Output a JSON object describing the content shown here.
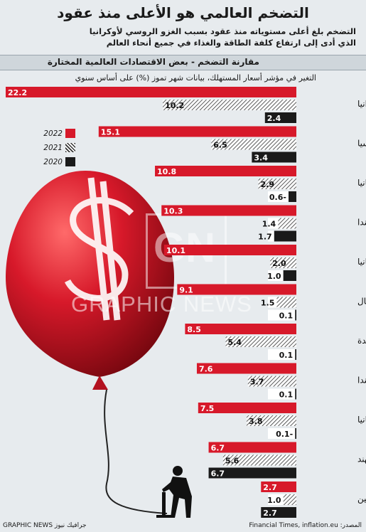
{
  "header": {
    "title": "التضخم العالمي هو الأعلى منذ عقود",
    "subtitle_line1": "التضخم بلغ أعلى مستوياته منذ عقود بسبب الغزو الروسي لأوكرانيا",
    "subtitle_line2": "الذي أدى إلى ارتفاع كلفة الطاقة والغذاء في جميع أنحاء العالم"
  },
  "section_title": "مقارنة التضخم - بعض الاقتصادات العالمية المختارة",
  "axis_note": "التغير في مؤشر أسعار المستهلك، بيانات شهر تموز (%) على أساس سنوي",
  "footer": {
    "credit": "GRAPHIC NEWS جرافيك نيوز",
    "source": "المصدر: Financial Times, inflation.eu"
  },
  "watermark": {
    "text": "GRAPHIC NEWS",
    "logo": "GN"
  },
  "colors": {
    "2022": "#d7192a",
    "2021": "hatched",
    "2020": "#1a1a1a",
    "background": "#e7ebee",
    "balloon": "#d7192a"
  },
  "icons": [
    "balloon",
    "dollar-sign",
    "man-with-pump"
  ],
  "chart_data": {
    "type": "bar",
    "categories": [
      "أوكرانيا",
      "روسيا",
      "إسبانيا",
      "هولندا",
      "بريطانيا",
      "البرتغال",
      "الولايات المتحدة",
      "كندا",
      "ألمانيا",
      "الهند",
      "الصين"
    ],
    "series": [
      {
        "name": "2022",
        "values": [
          22.2,
          15.1,
          10.8,
          10.3,
          10.1,
          9.1,
          8.5,
          7.6,
          7.5,
          6.7,
          2.7
        ],
        "labels": [
          "22.2",
          "15.1",
          "10.8",
          "10.3",
          "10.1",
          "9.1",
          "8.5",
          "7.6",
          "7.5",
          "6.7",
          "2.7"
        ]
      },
      {
        "name": "2021",
        "values": [
          10.2,
          6.5,
          2.9,
          1.4,
          2.0,
          1.5,
          5.4,
          3.7,
          3.8,
          5.6,
          1.0
        ],
        "labels": [
          "10.2",
          "6.5",
          "2.9",
          "1.4",
          "2.0",
          "1.5",
          "5.4",
          "3.7",
          "3.8",
          "5.6",
          "1.0"
        ]
      },
      {
        "name": "2020",
        "values": [
          2.4,
          3.4,
          -0.6,
          1.7,
          1.0,
          0.1,
          0.1,
          0.1,
          -0.1,
          6.7,
          2.7
        ],
        "labels": [
          "2.4",
          "3.4",
          "0.6-",
          "1.7",
          "1.0",
          "0.1",
          "0.1",
          "0.1",
          "0.1-",
          "6.7",
          "2.7"
        ]
      }
    ],
    "ylim": [
      0,
      22.2
    ]
  }
}
